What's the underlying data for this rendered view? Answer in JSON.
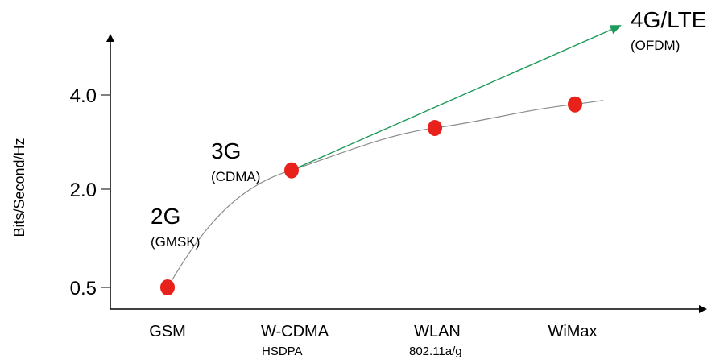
{
  "chart_data": {
    "type": "line",
    "title": "",
    "xlabel": "",
    "ylabel": "Bits/Second/Hz",
    "y_ticks": [
      "0.5",
      "2.0",
      "4.0"
    ],
    "categories": [
      "GSM",
      "W-CDMA",
      "WLAN",
      "WiMax"
    ],
    "category_sublabels": [
      "",
      "HSDPA",
      "802.11a/g",
      ""
    ],
    "series": [
      {
        "values": [
          0.5,
          2.4,
          3.3,
          3.8
        ]
      }
    ],
    "trend_arrow": {
      "from": "W-CDMA",
      "from_value": 2.4,
      "to_value": 5.6
    },
    "annotations": [
      {
        "label": "2G",
        "sublabel": "(GMSK)"
      },
      {
        "label": "3G",
        "sublabel": "(CDMA)"
      },
      {
        "label": "4G/LTE",
        "sublabel": "(OFDM)"
      }
    ],
    "grid": false,
    "legend": "none",
    "colors": {
      "point": "#e8211a",
      "curve": "#8c8c8c",
      "arrow": "#1e9a5a",
      "axis": "#000000"
    }
  }
}
